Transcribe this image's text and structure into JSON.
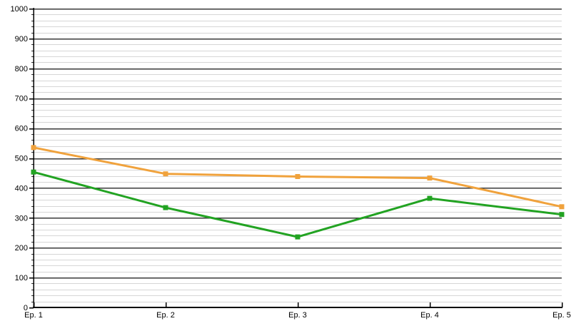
{
  "chart_data": {
    "type": "line",
    "title": "",
    "xlabel": "",
    "ylabel": "",
    "categories": [
      "Ep. 1",
      "Ep. 2",
      "Ep. 3",
      "Ep. 4",
      "Ep. 5"
    ],
    "series": [
      {
        "name": "orange-series",
        "color": "#f0a23c",
        "marker": "square",
        "values": [
          535,
          447,
          438,
          433,
          337
        ]
      },
      {
        "name": "green-series",
        "color": "#22a322",
        "marker": "square",
        "values": [
          453,
          334,
          236,
          365,
          311
        ]
      }
    ],
    "ylim": [
      0,
      1000
    ],
    "y_major_step": 100,
    "y_minor_step": 20,
    "y_tick_labels": [
      "0",
      "100",
      "200",
      "300",
      "400",
      "500",
      "600",
      "700",
      "800",
      "900",
      "1000"
    ],
    "legend": "none",
    "grid": {
      "major_color": "#3a3a3a",
      "minor_color": "#d6d6d6",
      "axis_color": "#000000",
      "background": "#ffffff"
    }
  }
}
